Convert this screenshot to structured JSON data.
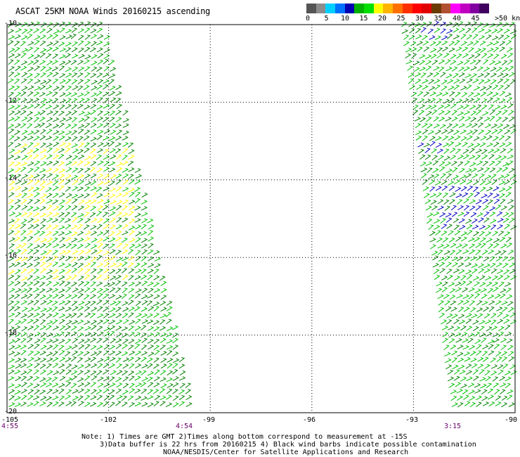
{
  "title": "ASCAT 25KM NOAA Winds 20160215 ascending",
  "legend": {
    "units": ">50 knots",
    "labels": [
      "0",
      "5",
      "10",
      "15",
      "20",
      "25",
      "30",
      "35",
      "40",
      "45"
    ],
    "colors": [
      "#555555",
      "#8c8c8c",
      "#00d0ff",
      "#0070ff",
      "#0000b0",
      "#00b000",
      "#00e000",
      "#ffff00",
      "#ffb400",
      "#ff7000",
      "#ff3000",
      "#ff0000",
      "#e00000",
      "#6b3a00",
      "#b05030",
      "#ff00ff",
      "#c000c0",
      "#8000a0",
      "#400060"
    ]
  },
  "map": {
    "lon_range": [
      -105,
      -90
    ],
    "lat_range": [
      -20,
      -10
    ],
    "lat_ticks": [
      "-10",
      "-12",
      "-14",
      "-16",
      "-18",
      "-20"
    ],
    "lon_ticks": [
      "-105",
      "-102",
      "-99",
      "-96",
      "-93",
      "-90"
    ],
    "grid": "dotted",
    "barb_colors": {
      "green": "#00c000",
      "dark_green": "#008000",
      "yellow": "#ffff00",
      "blue": "#0000c0"
    },
    "swaths": [
      {
        "name": "west",
        "west_lon": -105,
        "east_lon_top": -102.1,
        "east_lon_bottom": -99.4
      },
      {
        "name": "east",
        "west_lon_top": -93.4,
        "west_lon_bottom": -91.9,
        "east_lon": -90
      }
    ]
  },
  "times": [
    "4:55",
    "4:54",
    "3:15"
  ],
  "notes": [
    "Note: 1) Times are GMT 2)Times along bottom correspond to measurement at -15S",
    "3)Data buffer is 22 hrs from 20160215 4) Black wind barbs indicate possible contamination",
    "NOAA/NESDIS/Center for Satellite Applications and Research"
  ]
}
